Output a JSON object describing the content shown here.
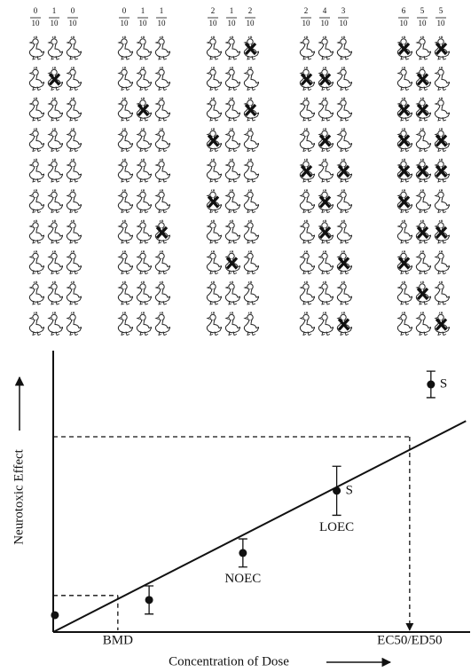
{
  "panel": {
    "ducks_per_column": 10,
    "groups": [
      {
        "columns": [
          {
            "numerator": "0",
            "denominator": "10",
            "affected": []
          },
          {
            "numerator": "1",
            "denominator": "10",
            "affected": [
              1
            ]
          },
          {
            "numerator": "0",
            "denominator": "10",
            "affected": []
          }
        ]
      },
      {
        "columns": [
          {
            "numerator": "0",
            "denominator": "10",
            "affected": []
          },
          {
            "numerator": "1",
            "denominator": "10",
            "affected": [
              2
            ]
          },
          {
            "numerator": "1",
            "denominator": "10",
            "affected": [
              6
            ]
          }
        ]
      },
      {
        "columns": [
          {
            "numerator": "2",
            "denominator": "10",
            "affected": [
              3,
              5
            ]
          },
          {
            "numerator": "1",
            "denominator": "10",
            "affected": [
              7
            ]
          },
          {
            "numerator": "2",
            "denominator": "10",
            "affected": [
              0,
              2
            ]
          }
        ]
      },
      {
        "columns": [
          {
            "numerator": "2",
            "denominator": "10",
            "affected": [
              1,
              4
            ]
          },
          {
            "numerator": "4",
            "denominator": "10",
            "affected": [
              1,
              3,
              5,
              6
            ]
          },
          {
            "numerator": "3",
            "denominator": "10",
            "affected": [
              4,
              7,
              9
            ]
          }
        ]
      },
      {
        "columns": [
          {
            "numerator": "6",
            "denominator": "10",
            "affected": [
              0,
              2,
              3,
              4,
              5,
              7
            ]
          },
          {
            "numerator": "5",
            "denominator": "10",
            "affected": [
              1,
              2,
              4,
              6,
              8
            ]
          },
          {
            "numerator": "5",
            "denominator": "10",
            "affected": [
              0,
              3,
              4,
              6,
              9
            ]
          }
        ]
      }
    ]
  },
  "chart_data": {
    "type": "scatter",
    "x_label": "Concentration of Dose",
    "y_label": "Neurotoxic Effect",
    "xlim": [
      0,
      100
    ],
    "ylim": [
      0,
      100
    ],
    "x": [
      0.4,
      23,
      45.5,
      68,
      90.6
    ],
    "values": [
      6,
      11.4,
      28.1,
      50.2,
      88
    ],
    "errors": [
      null,
      5,
      5,
      8.7,
      4.7
    ],
    "below_labels": [
      null,
      null,
      "NOEC",
      "LOEC",
      null
    ],
    "side_labels": [
      null,
      null,
      null,
      "S",
      "S"
    ],
    "fit": {
      "x": [
        0,
        99
      ],
      "y": [
        0,
        75
      ]
    },
    "markers": [
      {
        "label": "BMD",
        "x": 15.5,
        "y": 13
      },
      {
        "label": "EC50/ED50",
        "x": 85.5,
        "y": 69.4
      }
    ]
  }
}
